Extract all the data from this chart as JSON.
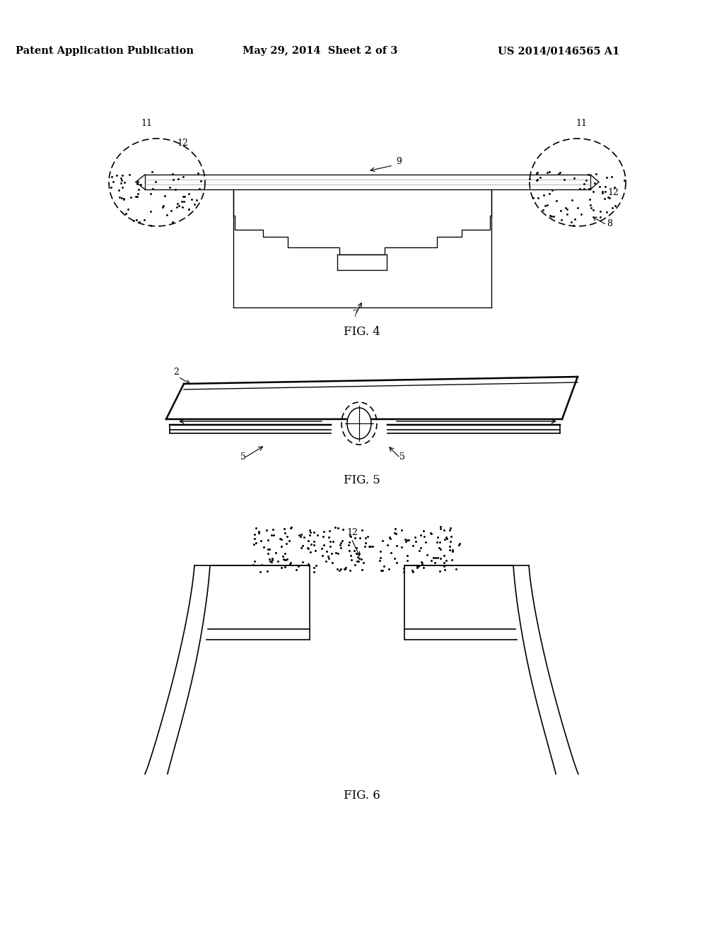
{
  "bg_color": "#ffffff",
  "line_color": "#000000",
  "header_left": "Patent Application Publication",
  "header_mid": "May 29, 2014  Sheet 2 of 3",
  "header_right": "US 2014/0146565 A1",
  "fig4_label": "FIG. 4",
  "fig5_label": "FIG. 5",
  "fig6_label": "FIG. 6"
}
